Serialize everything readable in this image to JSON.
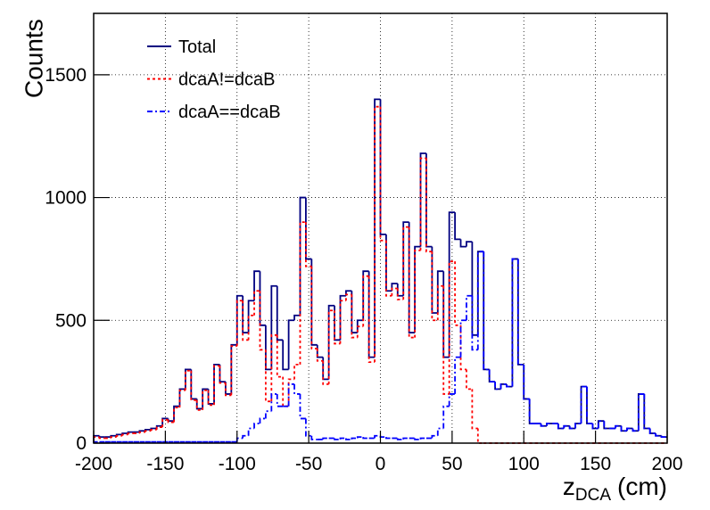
{
  "chart_data": {
    "type": "histogram",
    "ylabel": "Counts",
    "xlabel": "z",
    "xlabel_sub": "DCA",
    "xlabel_unit": "(cm)",
    "xlim": [
      -200,
      200
    ],
    "ylim": [
      0,
      1750
    ],
    "xticks": [
      -200,
      -150,
      -100,
      -50,
      0,
      50,
      100,
      150,
      200
    ],
    "yticks": [
      0,
      500,
      1000,
      1500
    ],
    "grid": true,
    "legend": "upper left",
    "bins": [
      -200,
      -196,
      -192,
      -188,
      -184,
      -180,
      -176,
      -172,
      -168,
      -164,
      -160,
      -156,
      -152,
      -148,
      -144,
      -140,
      -136,
      -132,
      -128,
      -124,
      -120,
      -116,
      -112,
      -108,
      -104,
      -100,
      -96,
      -92,
      -88,
      -84,
      -80,
      -76,
      -72,
      -68,
      -64,
      -60,
      -56,
      -52,
      -48,
      -44,
      -40,
      -36,
      -32,
      -28,
      -24,
      -20,
      -16,
      -12,
      -8,
      -4,
      0,
      4,
      8,
      12,
      16,
      20,
      24,
      28,
      32,
      36,
      40,
      44,
      48,
      52,
      56,
      60,
      64,
      68,
      72,
      76,
      80,
      84,
      88,
      92,
      96,
      100,
      104,
      108,
      112,
      116,
      120,
      124,
      128,
      132,
      136,
      140,
      144,
      148,
      152,
      156,
      160,
      164,
      168,
      172,
      176,
      180,
      184,
      188,
      192,
      196,
      200
    ],
    "series": [
      {
        "name": "Total",
        "color": "#000080",
        "dash": "none",
        "values": [
          30,
          25,
          25,
          30,
          35,
          40,
          45,
          45,
          50,
          55,
          60,
          70,
          100,
          90,
          150,
          220,
          300,
          180,
          140,
          220,
          160,
          320,
          250,
          200,
          400,
          600,
          450,
          580,
          700,
          480,
          300,
          640,
          420,
          300,
          500,
          520,
          1000,
          750,
          400,
          350,
          260,
          560,
          420,
          600,
          620,
          450,
          500,
          700,
          350,
          1400,
          850,
          620,
          650,
          600,
          900,
          450,
          800,
          1180,
          800,
          530,
          700,
          350,
          940,
          830,
          800,
          820,
          440,
          780,
          300,
          250,
          220,
          240,
          230,
          750,
          320,
          180,
          80,
          80,
          70,
          80,
          80,
          60,
          70,
          60,
          80,
          230,
          80,
          60,
          90,
          60,
          60,
          70,
          50,
          60,
          50,
          200,
          60,
          40,
          30,
          25
        ]
      },
      {
        "name": "dcaA!=dcaB",
        "color": "#ff0000",
        "dash": "3 3",
        "values": [
          25,
          20,
          20,
          25,
          30,
          35,
          40,
          40,
          45,
          50,
          55,
          65,
          95,
          85,
          145,
          215,
          295,
          175,
          135,
          215,
          155,
          315,
          245,
          195,
          395,
          580,
          420,
          520,
          620,
          380,
          170,
          440,
          270,
          150,
          260,
          320,
          900,
          720,
          385,
          335,
          240,
          540,
          405,
          580,
          605,
          430,
          475,
          680,
          330,
          1370,
          825,
          600,
          630,
          585,
          880,
          430,
          785,
          1160,
          780,
          500,
          640,
          200,
          740,
          480,
          300,
          220,
          60,
          0,
          0,
          0,
          0,
          0,
          0,
          0,
          0,
          0,
          0,
          0,
          0,
          0,
          0,
          0,
          0,
          0,
          0,
          0,
          0,
          0,
          0,
          0,
          0,
          0,
          0,
          0,
          0,
          0,
          0,
          0,
          0,
          0
        ]
      },
      {
        "name": "dcaA==dcaB",
        "color": "#0000ff",
        "dash": "6 3 2 3",
        "values": [
          5,
          5,
          5,
          5,
          5,
          5,
          5,
          5,
          5,
          5,
          5,
          5,
          5,
          5,
          5,
          5,
          5,
          5,
          5,
          5,
          5,
          5,
          5,
          5,
          5,
          20,
          30,
          60,
          80,
          100,
          130,
          200,
          150,
          150,
          240,
          200,
          100,
          30,
          15,
          15,
          20,
          20,
          15,
          20,
          15,
          20,
          25,
          20,
          20,
          30,
          25,
          20,
          20,
          15,
          20,
          20,
          15,
          20,
          20,
          30,
          60,
          150,
          200,
          350,
          500,
          600,
          380,
          780,
          300,
          250,
          220,
          240,
          230,
          750,
          320,
          180,
          80,
          80,
          70,
          80,
          80,
          60,
          70,
          60,
          80,
          230,
          80,
          60,
          90,
          60,
          60,
          70,
          50,
          60,
          50,
          200,
          60,
          40,
          30,
          25
        ]
      }
    ]
  }
}
